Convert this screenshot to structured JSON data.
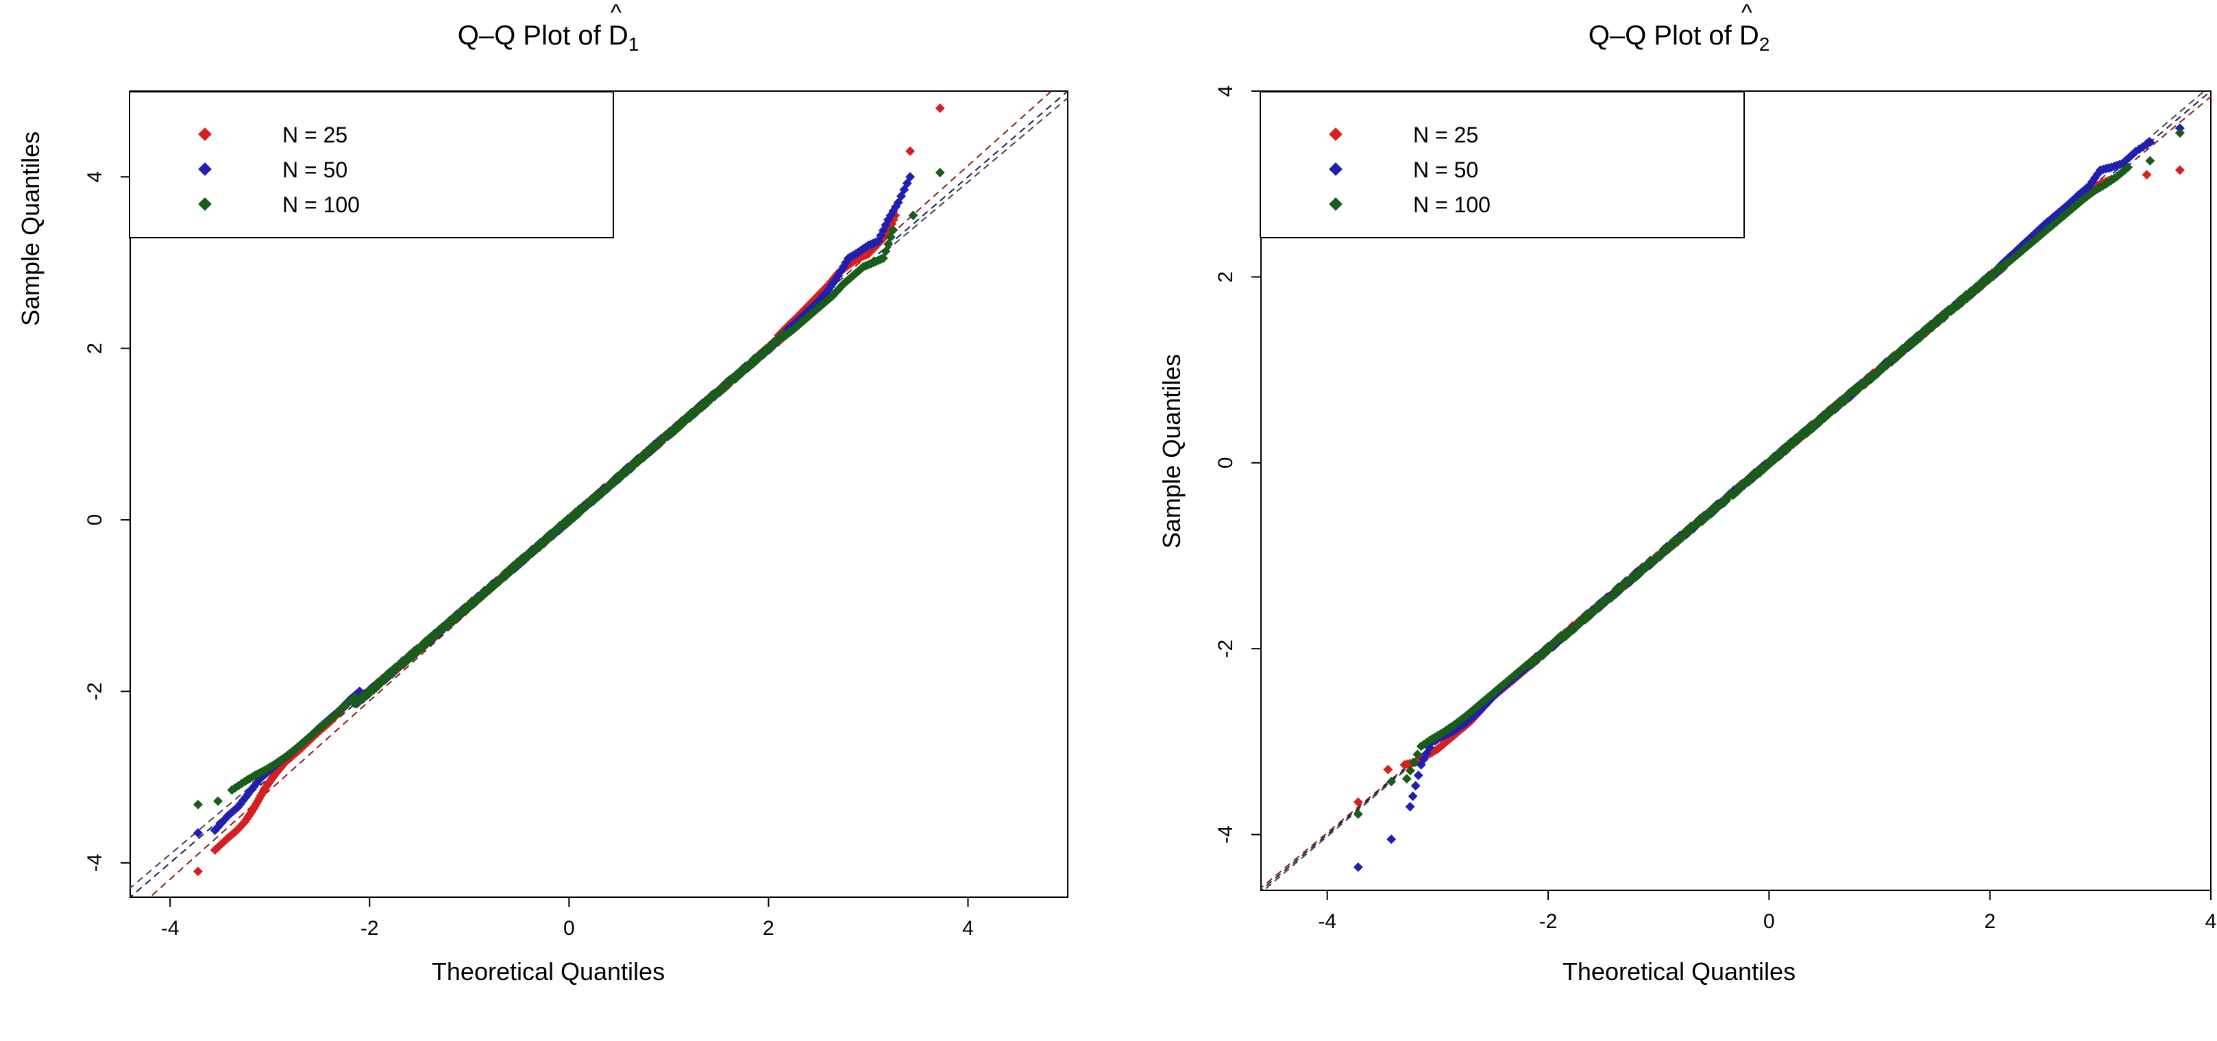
{
  "chart_data": [
    {
      "type": "scatter",
      "kind": "qq-plot",
      "title_prefix": "Q–Q Plot of ",
      "title_symbol": "D",
      "title_hat": "^",
      "title_subscript": "1",
      "xlabel": "Theoretical Quantiles",
      "ylabel": "Sample Quantiles",
      "xlim": [
        -4.4,
        5.0
      ],
      "ylim": [
        -4.4,
        5.0
      ],
      "x_ticks": [
        -4,
        -2,
        0,
        2,
        4
      ],
      "y_ticks": [
        -4,
        -2,
        0,
        2,
        4
      ],
      "legend": {
        "position": "top-left",
        "entries": [
          {
            "label": "N = 25",
            "color": "#d62020"
          },
          {
            "label": "N = 50",
            "color": "#1f1fb0"
          },
          {
            "label": "N = 100",
            "color": "#1a5c1a"
          }
        ]
      },
      "reference_lines": [
        {
          "series": "N = 25",
          "intercept": -0.03,
          "slope": 1.04,
          "color": "#8b1a1a"
        },
        {
          "series": "N = 50",
          "intercept": 0.0,
          "slope": 1.0,
          "color": "#1a1a5c"
        },
        {
          "series": "N = 100",
          "intercept": 0.02,
          "slope": 0.98,
          "color": "#444444"
        }
      ],
      "series": [
        {
          "name": "N = 25",
          "color": "#d62020",
          "tail_low": [
            [
              -3.72,
              -4.1
            ],
            [
              -3.55,
              -3.85
            ],
            [
              -3.43,
              -3.72
            ],
            [
              -3.33,
              -3.62
            ],
            [
              -3.25,
              -3.52
            ],
            [
              -3.18,
              -3.4
            ],
            [
              -3.12,
              -3.28
            ],
            [
              -3.06,
              -3.15
            ],
            [
              -3.0,
              -3.05
            ],
            [
              -2.95,
              -2.97
            ],
            [
              -2.9,
              -2.9
            ],
            [
              -2.85,
              -2.83
            ],
            [
              -2.78,
              -2.76
            ],
            [
              -2.7,
              -2.68
            ],
            [
              -2.6,
              -2.57
            ],
            [
              -2.5,
              -2.46
            ],
            [
              -2.4,
              -2.36
            ],
            [
              -2.3,
              -2.24
            ],
            [
              -2.2,
              -2.12
            ],
            [
              -2.1,
              -2.0
            ]
          ],
          "tail_high": [
            [
              2.1,
              2.15
            ],
            [
              2.2,
              2.27
            ],
            [
              2.3,
              2.38
            ],
            [
              2.4,
              2.5
            ],
            [
              2.5,
              2.62
            ],
            [
              2.6,
              2.74
            ],
            [
              2.7,
              2.88
            ],
            [
              2.8,
              2.97
            ],
            [
              2.9,
              3.05
            ],
            [
              3.0,
              3.1
            ],
            [
              3.1,
              3.22
            ],
            [
              3.2,
              3.35
            ],
            [
              3.27,
              3.55
            ],
            [
              3.42,
              4.3
            ],
            [
              3.72,
              4.8
            ]
          ]
        },
        {
          "name": "N = 50",
          "color": "#1f1fb0",
          "tail_low": [
            [
              -3.72,
              -3.65
            ],
            [
              -3.55,
              -3.62
            ],
            [
              -3.42,
              -3.45
            ],
            [
              -3.32,
              -3.35
            ],
            [
              -3.22,
              -3.2
            ],
            [
              -3.1,
              -3.02
            ],
            [
              -3.0,
              -2.92
            ],
            [
              -2.9,
              -2.82
            ],
            [
              -2.8,
              -2.73
            ],
            [
              -2.7,
              -2.63
            ],
            [
              -2.6,
              -2.53
            ],
            [
              -2.5,
              -2.42
            ],
            [
              -2.4,
              -2.32
            ],
            [
              -2.3,
              -2.22
            ],
            [
              -2.2,
              -2.1
            ],
            [
              -2.1,
              -2.0
            ]
          ],
          "tail_high": [
            [
              2.1,
              2.12
            ],
            [
              2.2,
              2.23
            ],
            [
              2.3,
              2.33
            ],
            [
              2.4,
              2.44
            ],
            [
              2.5,
              2.55
            ],
            [
              2.6,
              2.68
            ],
            [
              2.7,
              2.85
            ],
            [
              2.8,
              3.05
            ],
            [
              2.9,
              3.12
            ],
            [
              3.0,
              3.2
            ],
            [
              3.1,
              3.25
            ],
            [
              3.2,
              3.5
            ],
            [
              3.3,
              3.7
            ],
            [
              3.42,
              4.0
            ]
          ]
        },
        {
          "name": "N = 100",
          "color": "#1a5c1a",
          "tail_low": [
            [
              -3.72,
              -3.32
            ],
            [
              -3.52,
              -3.28
            ],
            [
              -3.38,
              -3.15
            ],
            [
              -3.25,
              -3.05
            ],
            [
              -3.15,
              -2.98
            ],
            [
              -3.05,
              -2.92
            ],
            [
              -2.95,
              -2.85
            ],
            [
              -2.85,
              -2.77
            ],
            [
              -2.75,
              -2.68
            ],
            [
              -2.65,
              -2.58
            ],
            [
              -2.55,
              -2.48
            ],
            [
              -2.45,
              -2.38
            ],
            [
              -2.35,
              -2.28
            ],
            [
              -2.25,
              -2.17
            ],
            [
              -2.15,
              -2.07
            ]
          ],
          "tail_high": [
            [
              2.15,
              2.13
            ],
            [
              2.25,
              2.22
            ],
            [
              2.35,
              2.32
            ],
            [
              2.45,
              2.42
            ],
            [
              2.55,
              2.52
            ],
            [
              2.65,
              2.62
            ],
            [
              2.75,
              2.75
            ],
            [
              2.85,
              2.85
            ],
            [
              2.95,
              2.95
            ],
            [
              3.05,
              3.0
            ],
            [
              3.15,
              3.05
            ],
            [
              3.25,
              3.38
            ],
            [
              3.45,
              3.55
            ],
            [
              3.72,
              4.05
            ]
          ]
        }
      ]
    },
    {
      "type": "scatter",
      "kind": "qq-plot",
      "title_prefix": "Q–Q Plot of ",
      "title_symbol": "D",
      "title_hat": "^",
      "title_subscript": "2",
      "xlabel": "Theoretical Quantiles",
      "ylabel": "Sample Quantiles",
      "xlim": [
        -4.6,
        4.0
      ],
      "ylim": [
        -4.6,
        4.0
      ],
      "x_ticks": [
        -4,
        -2,
        0,
        2,
        4
      ],
      "y_ticks": [
        -4,
        -2,
        0,
        2,
        4
      ],
      "legend": {
        "position": "top-left",
        "entries": [
          {
            "label": "N = 25",
            "color": "#d62020"
          },
          {
            "label": "N = 50",
            "color": "#1f1fb0"
          },
          {
            "label": "N = 100",
            "color": "#1a5c1a"
          }
        ]
      },
      "reference_lines": [
        {
          "series": "N = 25",
          "intercept": -0.02,
          "slope": 0.99,
          "color": "#8b1a1a"
        },
        {
          "series": "N = 50",
          "intercept": 0.0,
          "slope": 1.0,
          "color": "#1a1a5c"
        },
        {
          "series": "N = 100",
          "intercept": 0.02,
          "slope": 1.01,
          "color": "#444444"
        }
      ],
      "series": [
        {
          "name": "N = 25",
          "color": "#d62020",
          "tail_low": [
            [
              -3.72,
              -3.65
            ],
            [
              -3.45,
              -3.3
            ],
            [
              -3.3,
              -3.25
            ],
            [
              -3.2,
              -3.22
            ],
            [
              -3.1,
              -3.15
            ],
            [
              -3.0,
              -3.08
            ],
            [
              -2.9,
              -2.98
            ],
            [
              -2.8,
              -2.88
            ],
            [
              -2.7,
              -2.78
            ],
            [
              -2.6,
              -2.65
            ],
            [
              -2.5,
              -2.52
            ],
            [
              -2.4,
              -2.42
            ],
            [
              -2.3,
              -2.32
            ],
            [
              -2.2,
              -2.22
            ],
            [
              -2.1,
              -2.12
            ]
          ],
          "tail_high": [
            [
              2.1,
              2.1
            ],
            [
              2.2,
              2.2
            ],
            [
              2.3,
              2.31
            ],
            [
              2.4,
              2.41
            ],
            [
              2.5,
              2.52
            ],
            [
              2.6,
              2.62
            ],
            [
              2.7,
              2.73
            ],
            [
              2.8,
              2.85
            ],
            [
              2.9,
              2.95
            ],
            [
              3.0,
              3.0
            ],
            [
              3.1,
              3.05
            ],
            [
              3.42,
              3.1
            ],
            [
              3.72,
              3.15
            ]
          ]
        },
        {
          "name": "N = 50",
          "color": "#1f1fb0",
          "tail_low": [
            [
              -3.72,
              -4.35
            ],
            [
              -3.42,
              -4.05
            ],
            [
              -3.25,
              -3.7
            ],
            [
              -3.15,
              -3.25
            ],
            [
              -3.05,
              -3.0
            ],
            [
              -2.95,
              -2.94
            ],
            [
              -2.85,
              -2.88
            ],
            [
              -2.75,
              -2.8
            ],
            [
              -2.65,
              -2.7
            ],
            [
              -2.55,
              -2.58
            ],
            [
              -2.45,
              -2.46
            ],
            [
              -2.35,
              -2.36
            ],
            [
              -2.25,
              -2.26
            ],
            [
              -2.15,
              -2.16
            ]
          ],
          "tail_high": [
            [
              2.1,
              2.13
            ],
            [
              2.2,
              2.24
            ],
            [
              2.3,
              2.35
            ],
            [
              2.4,
              2.46
            ],
            [
              2.5,
              2.57
            ],
            [
              2.6,
              2.67
            ],
            [
              2.7,
              2.77
            ],
            [
              2.8,
              2.88
            ],
            [
              2.9,
              2.98
            ],
            [
              3.0,
              3.15
            ],
            [
              3.1,
              3.18
            ],
            [
              3.2,
              3.22
            ],
            [
              3.32,
              3.35
            ],
            [
              3.45,
              3.45
            ],
            [
              3.72,
              3.6
            ]
          ]
        },
        {
          "name": "N = 100",
          "color": "#1a5c1a",
          "tail_low": [
            [
              -3.72,
              -3.78
            ],
            [
              -3.42,
              -3.43
            ],
            [
              -3.28,
              -3.4
            ],
            [
              -3.15,
              -3.05
            ],
            [
              -3.05,
              -2.97
            ],
            [
              -2.95,
              -2.9
            ],
            [
              -2.85,
              -2.82
            ],
            [
              -2.75,
              -2.73
            ],
            [
              -2.65,
              -2.63
            ],
            [
              -2.55,
              -2.53
            ],
            [
              -2.45,
              -2.43
            ],
            [
              -2.35,
              -2.33
            ],
            [
              -2.25,
              -2.23
            ],
            [
              -2.15,
              -2.13
            ]
          ],
          "tail_high": [
            [
              2.15,
              2.14
            ],
            [
              2.25,
              2.24
            ],
            [
              2.35,
              2.34
            ],
            [
              2.45,
              2.44
            ],
            [
              2.55,
              2.54
            ],
            [
              2.65,
              2.64
            ],
            [
              2.75,
              2.74
            ],
            [
              2.85,
              2.84
            ],
            [
              2.95,
              2.93
            ],
            [
              3.05,
              3.0
            ],
            [
              3.15,
              3.08
            ],
            [
              3.25,
              3.18
            ],
            [
              3.45,
              3.25
            ],
            [
              3.72,
              3.55
            ]
          ]
        }
      ]
    }
  ]
}
